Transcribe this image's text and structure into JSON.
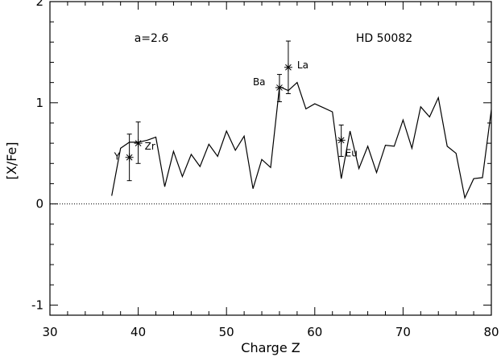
{
  "chart_data": {
    "type": "line",
    "title": "",
    "xlabel": "Charge Z",
    "ylabel": "[X/Fe]",
    "xlim": [
      30,
      80
    ],
    "ylim": [
      -1.1,
      2.0
    ],
    "xticks": [
      30,
      40,
      50,
      60,
      70,
      80
    ],
    "xtick_labels": [
      "30",
      "40",
      "50",
      "60",
      "70",
      "80"
    ],
    "yticks": [
      -1,
      0,
      1,
      2
    ],
    "ytick_labels": [
      "-1",
      "0",
      "1",
      "2"
    ],
    "grid": false,
    "reference_line": {
      "y": 0,
      "style": "dotted"
    },
    "annotations": [
      {
        "text": "a=2.6",
        "x": 40.6,
        "y": 1.66
      },
      {
        "text": "HD 50082",
        "x": 66.5,
        "y": 1.66
      }
    ],
    "series": [
      {
        "type": "line",
        "x": [
          37,
          38,
          39,
          40,
          41,
          42,
          43,
          44,
          45,
          46,
          47,
          48,
          49,
          50,
          51,
          52,
          53,
          54,
          55,
          56,
          57,
          58,
          59,
          60,
          61,
          62,
          63,
          64,
          65,
          66,
          67,
          68,
          69,
          70,
          71,
          72,
          73,
          74,
          75,
          76,
          77,
          78,
          79,
          80
        ],
        "y": [
          0.08,
          0.55,
          0.61,
          0.61,
          0.63,
          0.66,
          0.17,
          0.52,
          0.27,
          0.49,
          0.37,
          0.59,
          0.47,
          0.72,
          0.53,
          0.67,
          0.15,
          0.44,
          0.36,
          1.16,
          1.12,
          1.2,
          0.94,
          0.99,
          0.95,
          0.91,
          0.25,
          0.72,
          0.35,
          0.57,
          0.31,
          0.58,
          0.57,
          0.83,
          0.55,
          0.96,
          0.86,
          1.05,
          0.57,
          0.5,
          0.06,
          0.25,
          0.26,
          0.93
        ]
      },
      {
        "type": "scatter",
        "marker": "asterisk",
        "points": [
          {
            "label": "Y",
            "x": 39,
            "y": 0.46,
            "err_low": 0.23,
            "err_high": 0.69
          },
          {
            "label": "Zr",
            "x": 40,
            "y": 0.6,
            "err_low": 0.4,
            "err_high": 0.81
          },
          {
            "label": "Ba",
            "x": 56,
            "y": 1.15,
            "err_low": 1.01,
            "err_high": 1.28
          },
          {
            "label": "La",
            "x": 57,
            "y": 1.35,
            "err_low": 1.09,
            "err_high": 1.61
          },
          {
            "label": "Eu",
            "x": 63,
            "y": 0.63,
            "err_low": 0.47,
            "err_high": 0.78
          }
        ]
      }
    ]
  }
}
